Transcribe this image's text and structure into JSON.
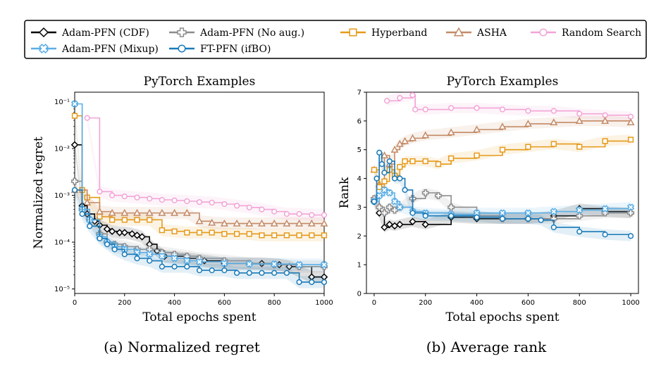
{
  "legend": [
    {
      "name": "Adam-PFN (CDF)",
      "color": "#000000",
      "marker": "diamond"
    },
    {
      "name": "Adam-PFN (No aug.)",
      "color": "#8c8c8c",
      "marker": "plus"
    },
    {
      "name": "Hyperband",
      "color": "#e59a1a",
      "marker": "square"
    },
    {
      "name": "ASHA",
      "color": "#c48a66",
      "marker": "triangle"
    },
    {
      "name": "Random Search",
      "color": "#f2a3d6",
      "marker": "circle"
    },
    {
      "name": "Adam-PFN (Mixup)",
      "color": "#5aaee6",
      "marker": "x"
    },
    {
      "name": "FT-PFN (ifBO)",
      "color": "#1a7ab8",
      "marker": "circle"
    }
  ],
  "captions": [
    "(a) Normalized regret",
    "(b) Average rank"
  ],
  "chart_data": [
    {
      "type": "line",
      "title": "PyTorch Examples",
      "xlabel": "Total epochs spent",
      "ylabel": "Normalized regret",
      "yscale": "log",
      "xlim": [
        0,
        1000
      ],
      "ylim": [
        8e-06,
        0.16
      ],
      "xticks": [
        0,
        200,
        400,
        600,
        800,
        1000
      ],
      "yticks": [
        1e-05,
        0.0001,
        0.001,
        0.01,
        0.1
      ],
      "ytick_labels": [
        "10⁻⁵",
        "10⁻⁴",
        "10⁻³",
        "10⁻²",
        "10⁻¹"
      ],
      "series": [
        {
          "name": "Random Search",
          "x": [
            50,
            100,
            150,
            200,
            250,
            300,
            350,
            400,
            450,
            500,
            550,
            600,
            650,
            700,
            750,
            800,
            850,
            900,
            950,
            1000
          ],
          "y": [
            0.045,
            0.0012,
            0.001,
            0.00095,
            0.0009,
            0.00085,
            0.0008,
            0.00078,
            0.00075,
            0.00072,
            0.0007,
            0.00065,
            0.0006,
            0.00055,
            0.0005,
            0.00045,
            0.0004,
            0.0004,
            0.00038,
            0.00038
          ]
        },
        {
          "name": "Hyperband",
          "x": [
            0,
            30,
            50,
            100,
            150,
            200,
            250,
            300,
            350,
            400,
            450,
            500,
            550,
            600,
            650,
            700,
            750,
            800,
            850,
            900,
            950,
            1000
          ],
          "y": [
            0.05,
            0.0013,
            0.0009,
            0.00035,
            0.0003,
            0.0003,
            0.0003,
            0.0003,
            0.00018,
            0.00017,
            0.00016,
            0.00016,
            0.00016,
            0.00015,
            0.00015,
            0.00015,
            0.00014,
            0.00014,
            0.00014,
            0.00014,
            0.00014,
            0.00014
          ]
        },
        {
          "name": "ASHA",
          "x": [
            0,
            50,
            100,
            150,
            200,
            250,
            300,
            350,
            400,
            450,
            500,
            550,
            600,
            650,
            700,
            750,
            800,
            850,
            900,
            950,
            1000
          ],
          "y": [
            0.0013,
            0.0007,
            0.00045,
            0.00042,
            0.00042,
            0.00042,
            0.00042,
            0.00042,
            0.00042,
            0.00042,
            0.00028,
            0.00026,
            0.00025,
            0.00025,
            0.00025,
            0.00025,
            0.00025,
            0.00025,
            0.00025,
            0.00025,
            0.00025
          ]
        },
        {
          "name": "Adam-PFN (CDF)",
          "x": [
            0,
            30,
            50,
            80,
            100,
            130,
            150,
            180,
            200,
            230,
            250,
            270,
            300,
            330,
            360,
            450,
            520,
            600,
            700,
            750,
            820,
            860,
            950,
            1000
          ],
          "y": [
            0.012,
            0.0006,
            0.0004,
            0.00028,
            0.00023,
            0.00019,
            0.00017,
            0.00016,
            0.00016,
            0.00015,
            0.00014,
            0.00013,
            9e-05,
            6.5e-05,
            5e-05,
            4.5e-05,
            4e-05,
            3.5e-05,
            3.5e-05,
            3.5e-05,
            3.3e-05,
            3e-05,
            1.8e-05,
            1.8e-05
          ]
        },
        {
          "name": "Adam-PFN (No aug.)",
          "x": [
            0,
            30,
            60,
            100,
            130,
            160,
            200,
            250,
            300,
            350,
            400,
            450,
            500,
            600,
            700,
            800,
            900,
            1000
          ],
          "y": [
            0.002,
            0.0005,
            0.0003,
            0.00015,
            0.0001,
            9e-05,
            8e-05,
            7e-05,
            7e-05,
            6e-05,
            5.5e-05,
            5e-05,
            4.5e-05,
            4e-05,
            3.5e-05,
            3.3e-05,
            3e-05,
            3e-05
          ]
        },
        {
          "name": "Adam-PFN (Mixup)",
          "x": [
            0,
            30,
            60,
            100,
            130,
            160,
            200,
            250,
            300,
            350,
            400,
            450,
            500,
            600,
            700,
            800,
            900,
            1000
          ],
          "y": [
            0.09,
            0.0005,
            0.0003,
            0.00013,
            0.0001,
            8e-05,
            7e-05,
            6e-05,
            5.5e-05,
            5e-05,
            4.5e-05,
            4e-05,
            3.8e-05,
            3.5e-05,
            3.4e-05,
            3.4e-05,
            3.3e-05,
            3.3e-05
          ]
        },
        {
          "name": "FT-PFN (ifBO)",
          "x": [
            0,
            30,
            60,
            100,
            130,
            160,
            200,
            250,
            300,
            350,
            400,
            450,
            500,
            550,
            600,
            650,
            700,
            750,
            800,
            850,
            900,
            950,
            1000
          ],
          "y": [
            0.0013,
            0.0004,
            0.00022,
            0.00012,
            9e-05,
            7e-05,
            5.5e-05,
            4.5e-05,
            4e-05,
            3e-05,
            3e-05,
            3e-05,
            2.5e-05,
            2.5e-05,
            2.5e-05,
            2.2e-05,
            2.2e-05,
            2.2e-05,
            2.2e-05,
            2.2e-05,
            1.4e-05,
            1.4e-05,
            1.4e-05
          ]
        }
      ]
    },
    {
      "type": "line",
      "title": "PyTorch Examples",
      "xlabel": "Total epochs spent",
      "ylabel": "Rank",
      "xlim": [
        -30,
        1030
      ],
      "ylim": [
        0,
        7
      ],
      "xticks": [
        0,
        200,
        400,
        600,
        800,
        1000
      ],
      "yticks": [
        0,
        1,
        2,
        3,
        4,
        5,
        6,
        7
      ],
      "series": [
        {
          "name": "Random Search",
          "x": [
            50,
            100,
            150,
            160,
            200,
            300,
            400,
            500,
            600,
            700,
            800,
            900,
            1000
          ],
          "y": [
            6.7,
            6.8,
            6.9,
            6.4,
            6.4,
            6.45,
            6.45,
            6.4,
            6.35,
            6.35,
            6.25,
            6.2,
            6.15
          ]
        },
        {
          "name": "ASHA",
          "x": [
            0,
            20,
            40,
            60,
            80,
            100,
            120,
            150,
            200,
            300,
            400,
            500,
            600,
            700,
            800,
            900,
            1000
          ],
          "y": [
            4.3,
            3.8,
            4.8,
            4.5,
            5.0,
            5.2,
            5.3,
            5.4,
            5.5,
            5.6,
            5.7,
            5.8,
            5.9,
            5.95,
            6.0,
            6.0,
            5.95
          ]
        },
        {
          "name": "Hyperband",
          "x": [
            0,
            20,
            40,
            60,
            80,
            100,
            120,
            150,
            200,
            250,
            300,
            400,
            500,
            600,
            700,
            800,
            900,
            1000
          ],
          "y": [
            4.3,
            3.7,
            3.9,
            4.3,
            4.1,
            4.4,
            4.6,
            4.6,
            4.6,
            4.5,
            4.7,
            4.8,
            5.0,
            5.1,
            5.2,
            5.1,
            5.3,
            5.35
          ]
        },
        {
          "name": "Adam-PFN (CDF)",
          "x": [
            0,
            20,
            40,
            60,
            80,
            100,
            150,
            200,
            300,
            400,
            500,
            600,
            700,
            800,
            900,
            1000
          ],
          "y": [
            3.2,
            2.8,
            2.3,
            2.4,
            2.35,
            2.4,
            2.5,
            2.4,
            2.65,
            2.6,
            2.6,
            2.6,
            2.7,
            2.95,
            2.85,
            2.8
          ]
        },
        {
          "name": "Adam-PFN (No aug.)",
          "x": [
            0,
            20,
            40,
            60,
            80,
            100,
            150,
            200,
            250,
            300,
            400,
            500,
            600,
            700,
            800,
            900,
            1000
          ],
          "y": [
            3.3,
            3.0,
            2.8,
            3.0,
            2.9,
            3.0,
            3.3,
            3.5,
            3.4,
            3.0,
            2.7,
            2.6,
            2.6,
            2.6,
            2.7,
            2.8,
            2.8
          ]
        },
        {
          "name": "Adam-PFN (Mixup)",
          "x": [
            0,
            20,
            40,
            60,
            80,
            100,
            150,
            200,
            300,
            400,
            500,
            600,
            700,
            800,
            900,
            1000
          ],
          "y": [
            3.2,
            3.4,
            3.6,
            3.5,
            3.2,
            3.0,
            2.85,
            2.8,
            2.75,
            2.8,
            2.8,
            2.8,
            2.85,
            2.9,
            2.95,
            3.0
          ]
        },
        {
          "name": "FT-PFN (ifBO)",
          "x": [
            0,
            10,
            20,
            30,
            40,
            60,
            80,
            100,
            120,
            150,
            200,
            300,
            400,
            500,
            600,
            650,
            700,
            800,
            900,
            1000
          ],
          "y": [
            3.2,
            4.0,
            4.9,
            4.5,
            4.2,
            4.6,
            4.0,
            4.0,
            3.6,
            2.8,
            2.7,
            2.7,
            2.65,
            2.6,
            2.6,
            2.55,
            2.3,
            2.15,
            2.05,
            2.0
          ]
        }
      ]
    }
  ]
}
